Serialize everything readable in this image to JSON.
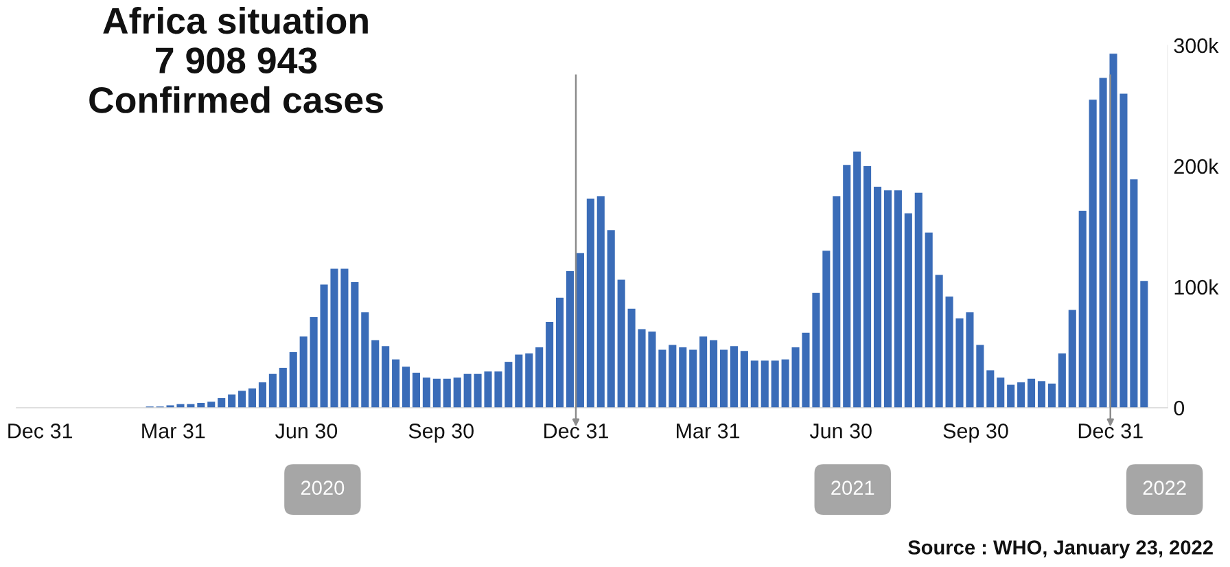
{
  "chart_data": {
    "type": "bar",
    "title": "Africa situation\n7 908 943\nConfirmed cases",
    "annotations": [
      "Source : WHO, January 23, 2022"
    ],
    "x": [
      "2020-03-15",
      "2020-03-22",
      "2020-03-29",
      "2020-04-05",
      "2020-04-12",
      "2020-04-19",
      "2020-04-26",
      "2020-05-03",
      "2020-05-10",
      "2020-05-17",
      "2020-05-24",
      "2020-05-31",
      "2020-06-07",
      "2020-06-14",
      "2020-06-21",
      "2020-06-28",
      "2020-07-05",
      "2020-07-12",
      "2020-07-19",
      "2020-07-26",
      "2020-08-02",
      "2020-08-09",
      "2020-08-16",
      "2020-08-23",
      "2020-08-30",
      "2020-09-06",
      "2020-09-13",
      "2020-09-20",
      "2020-09-27",
      "2020-10-04",
      "2020-10-11",
      "2020-10-18",
      "2020-10-25",
      "2020-11-01",
      "2020-11-08",
      "2020-11-15",
      "2020-11-22",
      "2020-11-29",
      "2020-12-06",
      "2020-12-13",
      "2020-12-20",
      "2020-12-27",
      "2021-01-03",
      "2021-01-10",
      "2021-01-17",
      "2021-01-24",
      "2021-01-31",
      "2021-02-07",
      "2021-02-14",
      "2021-02-21",
      "2021-02-28",
      "2021-03-07",
      "2021-03-14",
      "2021-03-21",
      "2021-03-28",
      "2021-04-04",
      "2021-04-11",
      "2021-04-18",
      "2021-04-25",
      "2021-05-02",
      "2021-05-09",
      "2021-05-16",
      "2021-05-23",
      "2021-05-30",
      "2021-06-06",
      "2021-06-13",
      "2021-06-20",
      "2021-06-27",
      "2021-07-04",
      "2021-07-11",
      "2021-07-18",
      "2021-07-25",
      "2021-08-01",
      "2021-08-08",
      "2021-08-15",
      "2021-08-22",
      "2021-08-29",
      "2021-09-05",
      "2021-09-12",
      "2021-09-19",
      "2021-09-26",
      "2021-10-03",
      "2021-10-10",
      "2021-10-17",
      "2021-10-24",
      "2021-10-31",
      "2021-11-07",
      "2021-11-14",
      "2021-11-21",
      "2021-11-28",
      "2021-12-05",
      "2021-12-12",
      "2021-12-19",
      "2021-12-26",
      "2022-01-02",
      "2022-01-09",
      "2022-01-16",
      "2022-01-23"
    ],
    "values": [
      1000,
      1000,
      2000,
      3000,
      3000,
      4000,
      5000,
      8000,
      11000,
      14000,
      16000,
      21000,
      28000,
      33000,
      46000,
      59000,
      75000,
      102000,
      115000,
      115000,
      104000,
      79000,
      56000,
      51000,
      40000,
      34000,
      29000,
      25000,
      24000,
      24000,
      25000,
      28000,
      28000,
      30000,
      30000,
      38000,
      44000,
      45000,
      50000,
      71000,
      91000,
      113000,
      128000,
      173000,
      175000,
      147000,
      106000,
      82000,
      65000,
      63000,
      48000,
      52000,
      50000,
      48000,
      59000,
      56000,
      48000,
      51000,
      47000,
      39000,
      39000,
      39000,
      40000,
      50000,
      62000,
      95000,
      130000,
      175000,
      201000,
      212000,
      200000,
      183000,
      180000,
      180000,
      161000,
      178000,
      145000,
      110000,
      92000,
      74000,
      79000,
      52000,
      31000,
      25000,
      19000,
      21000,
      24000,
      22000,
      20000,
      45000,
      81000,
      163000,
      255000,
      273000,
      293000,
      260000,
      189000,
      105000
    ],
    "color": "#3a6cb8",
    "xlim": [
      "2019-12-15",
      "2022-02-08"
    ],
    "xticks": [
      {
        "value": "2019-12-31",
        "label": "Dec 31"
      },
      {
        "value": "2020-03-31",
        "label": "Mar 31"
      },
      {
        "value": "2020-06-30",
        "label": "Jun 30"
      },
      {
        "value": "2020-09-30",
        "label": "Sep 30"
      },
      {
        "value": "2020-12-31",
        "label": "Dec 31"
      },
      {
        "value": "2021-03-31",
        "label": "Mar 31"
      },
      {
        "value": "2021-06-30",
        "label": "Jun 30"
      },
      {
        "value": "2021-09-30",
        "label": "Sep 30"
      },
      {
        "value": "2021-12-31",
        "label": "Dec 31"
      }
    ],
    "x2lim": [
      "2019-12-15",
      "2022-02-08"
    ],
    "x2ticks": [
      {
        "value": "2020-07-11",
        "label": "2020"
      },
      {
        "value": "2021-07-08",
        "label": "2021"
      },
      {
        "value": "2022-02-06",
        "label": "2022"
      }
    ],
    "ylim": [
      0,
      300000
    ],
    "yticks": [
      0,
      {
        "value": 100000,
        "label": "100k"
      },
      {
        "value": 200000,
        "label": "200k"
      },
      {
        "value": 300000,
        "label": "300k"
      }
    ],
    "ref_lines": [
      {
        "axis": "x",
        "value": "2020-12-31",
        "color": "#8c8c8c"
      },
      {
        "axis": "x",
        "value": "2021-12-31",
        "color": "#8c8c8c"
      }
    ],
    "grid": false
  }
}
